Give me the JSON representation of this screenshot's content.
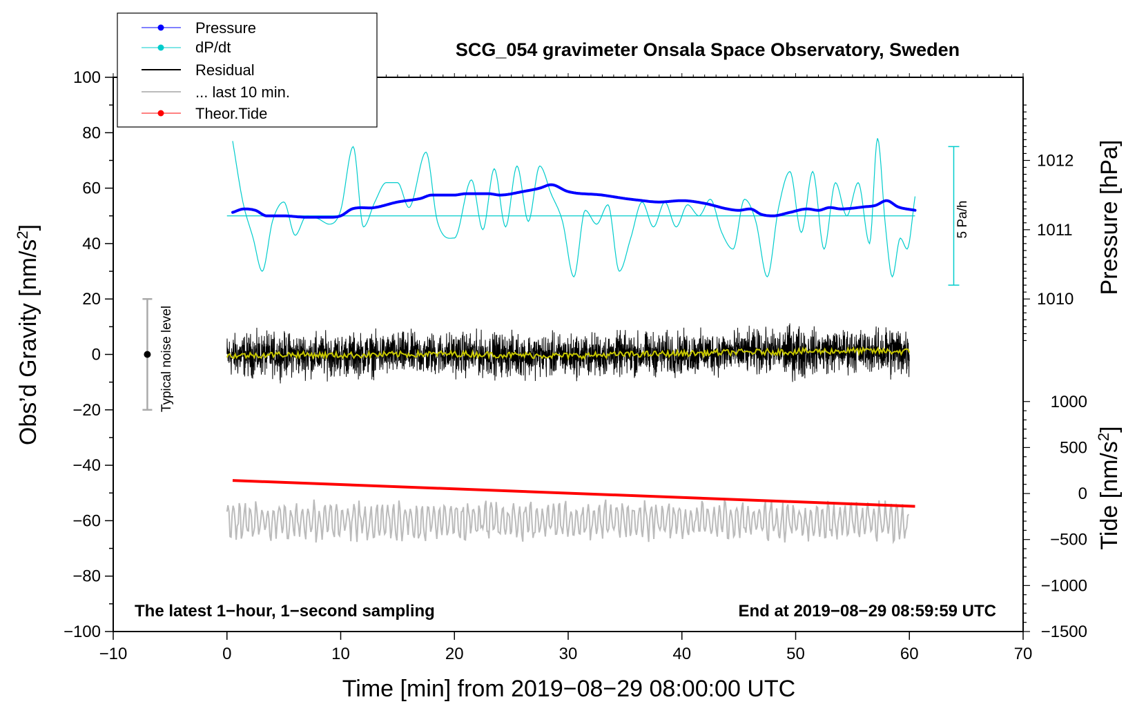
{
  "chart_data": {
    "type": "line",
    "title": "SCG_054 gravimeter Onsala Space Observatory, Sweden",
    "xlabel": "Time [min] from 2019−08−29 08:00:00 UTC",
    "ylabel": "Obs’d Gravity [nm/s",
    "ylabel_sup": "2",
    "ylabel_close": "]",
    "right_upper_label": "Pressure [hPa]",
    "right_lower_label": "Tide [nm/s",
    "right_lower_sup": "2",
    "right_lower_close": "]",
    "xlim": [
      -10,
      70
    ],
    "ylim": [
      -100,
      100
    ],
    "x_ticks": [
      {
        "value": -10,
        "label": "−10"
      },
      {
        "value": 0,
        "label": "0"
      },
      {
        "value": 10,
        "label": "10"
      },
      {
        "value": 20,
        "label": "20"
      },
      {
        "value": 30,
        "label": "30"
      },
      {
        "value": 40,
        "label": "40"
      },
      {
        "value": 50,
        "label": "50"
      },
      {
        "value": 60,
        "label": "60"
      },
      {
        "value": 70,
        "label": "70"
      }
    ],
    "y_ticks": [
      {
        "value": 100,
        "label": "100"
      },
      {
        "value": 80,
        "label": "80"
      },
      {
        "value": 60,
        "label": "60"
      },
      {
        "value": 40,
        "label": "40"
      },
      {
        "value": 20,
        "label": "20"
      },
      {
        "value": 0,
        "label": "0"
      },
      {
        "value": -20,
        "label": "−20"
      },
      {
        "value": -40,
        "label": "−40"
      },
      {
        "value": -60,
        "label": "−60"
      },
      {
        "value": -80,
        "label": "−80"
      },
      {
        "value": -100,
        "label": "−100"
      }
    ],
    "pressure_axis": {
      "ticks": [
        {
          "value": 1012,
          "label": "1012"
        },
        {
          "value": 1011,
          "label": "1011"
        },
        {
          "value": 1010,
          "label": "1010"
        }
      ],
      "gravity_at_1010": 20,
      "gravity_at_1012": 70
    },
    "tide_axis": {
      "ticks": [
        {
          "value": 1000,
          "label": "1000"
        },
        {
          "value": 500,
          "label": "500"
        },
        {
          "value": 0,
          "label": "0"
        },
        {
          "value": -500,
          "label": "−500"
        },
        {
          "value": -1000,
          "label": "−1000"
        },
        {
          "value": -1500,
          "label": "−1500"
        }
      ],
      "gravity_at_1000": -17,
      "gravity_at_minus1500": -100
    },
    "legend": [
      {
        "label": "Pressure",
        "color": "#0000ff",
        "marker": true,
        "width": 1
      },
      {
        "label": "dP/dt",
        "color": "#00cccc",
        "marker": true,
        "width": 1
      },
      {
        "label": "Residual",
        "color": "#000000",
        "marker": false,
        "width": 2
      },
      {
        "label": "... last 10 min.",
        "color": "#bbbbbb",
        "marker": false,
        "width": 2
      },
      {
        "label": "Theor.Tide",
        "color": "#ff0000",
        "marker": true,
        "width": 1
      }
    ],
    "series": [
      {
        "name": "Pressure",
        "color": "#0000ff",
        "units": "hPa",
        "x": [
          0.5,
          1.5,
          2.5,
          3.5,
          5,
          7,
          9,
          10,
          11,
          13,
          15,
          17,
          18,
          20,
          21,
          23,
          24,
          26,
          27.5,
          28.5,
          30,
          33,
          35,
          36,
          38,
          40,
          42,
          44,
          45,
          46,
          47,
          48,
          49.5,
          51,
          52,
          53,
          54,
          56,
          57,
          58,
          59,
          60.5
        ],
        "y": [
          1011.25,
          1011.3,
          1011.28,
          1011.2,
          1011.2,
          1011.18,
          1011.18,
          1011.2,
          1011.3,
          1011.32,
          1011.4,
          1011.45,
          1011.5,
          1011.5,
          1011.52,
          1011.52,
          1011.5,
          1011.55,
          1011.6,
          1011.65,
          1011.55,
          1011.5,
          1011.45,
          1011.43,
          1011.4,
          1011.42,
          1011.38,
          1011.3,
          1011.28,
          1011.3,
          1011.22,
          1011.2,
          1011.25,
          1011.3,
          1011.28,
          1011.32,
          1011.3,
          1011.33,
          1011.35,
          1011.42,
          1011.33,
          1011.28
        ]
      },
      {
        "name": "dP/dt",
        "color": "#00cccc",
        "units": "Pa/h",
        "zero_level_gravity": 50,
        "scale_bar_label": "5 Pa/h",
        "x": [
          0.5,
          1.4,
          2.3,
          3.1,
          4,
          5,
          6,
          7,
          8,
          9,
          10,
          11.1,
          12,
          13,
          14,
          15,
          16,
          17.5,
          18.5,
          20,
          21.5,
          22.5,
          23.5,
          24.5,
          25.5,
          26.5,
          27.5,
          28.5,
          29.5,
          30.5,
          31.5,
          32.5,
          33.5,
          34.5,
          35.5,
          36.5,
          37.5,
          38.5,
          39.5,
          40.5,
          41.5,
          42.5,
          43.5,
          44.5,
          45.5,
          46.5,
          47.5,
          48.5,
          49.5,
          50.5,
          51.5,
          52.5,
          53.5,
          54.5,
          55.5,
          56.5,
          57.2,
          57.9,
          58.5,
          59.2,
          59.8,
          60.5
        ],
        "y": [
          77,
          55,
          42,
          30,
          48,
          55,
          43,
          50,
          49,
          47,
          52,
          75,
          46,
          55,
          62,
          62,
          53,
          73,
          48,
          42,
          63,
          45,
          67,
          46,
          68,
          48,
          68,
          58,
          48,
          28,
          52,
          47,
          54,
          30,
          42,
          55,
          46,
          55,
          46,
          54,
          50,
          56,
          44,
          38,
          56,
          48,
          28,
          53,
          66,
          44,
          66,
          38,
          62,
          50,
          62,
          40,
          78,
          46,
          28,
          42,
          38,
          57
        ]
      },
      {
        "name": "Residual",
        "color": "#000000",
        "noise_amplitude": 11,
        "x_range": [
          0,
          60
        ],
        "mean_x": [
          0,
          5,
          10,
          15,
          20,
          25,
          30,
          35,
          40,
          45,
          50,
          55,
          60
        ],
        "mean_y": [
          -0.5,
          0,
          -0.3,
          0,
          0.2,
          -0.2,
          -0.5,
          0,
          0.3,
          0.8,
          1,
          1.3,
          1
        ]
      },
      {
        "name": "... last 10 min.",
        "color": "#bbbbbb",
        "center": -60,
        "amplitude": 8,
        "x_range": [
          0,
          60
        ]
      },
      {
        "name": "Theor.Tide",
        "color": "#ff0000",
        "units": "nm/s^2",
        "x": [
          0.5,
          60.5
        ],
        "y": [
          142,
          -139
        ]
      }
    ],
    "noise_bar": {
      "x": -7,
      "ymin": -20,
      "ymax": 20,
      "center": 0,
      "label": "Typical noise level"
    },
    "annotations": {
      "bottom_left": "The latest 1−hour, 1−second sampling",
      "bottom_right": "End at 2019−08−29 08:59:59 UTC"
    }
  }
}
